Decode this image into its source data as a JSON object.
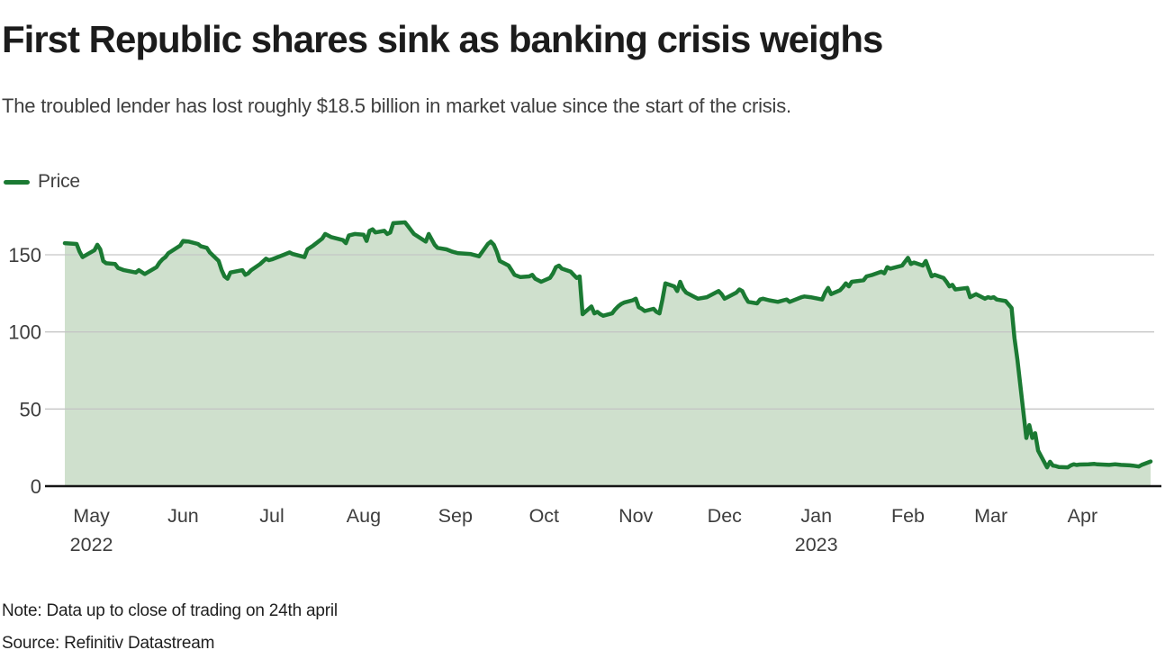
{
  "header": {
    "title": "First Republic shares sink as banking crisis weighs",
    "subtitle": "The troubled lender has lost roughly $18.5 billion in market value since the start of the crisis."
  },
  "legend": {
    "label": "Price"
  },
  "footer": {
    "note": "Note: Data up to close of trading on 24th april",
    "source": "Source: Refinitiv Datastream"
  },
  "colors": {
    "line": "#1b7a33",
    "fill": "#cfe0cd",
    "grid": "#c4c4c4",
    "axis": "#151515",
    "tick_text": "#3d3d3d"
  },
  "chart_data": {
    "type": "area",
    "title": "First Republic Bank share price (USD)",
    "xlabel": "",
    "ylabel": "",
    "x_unit": "date",
    "x_range": [
      "2022-04-22",
      "2023-04-24"
    ],
    "ylim": [
      0,
      175
    ],
    "y_ticks": [
      0,
      50,
      100,
      150
    ],
    "grid": "horizontal",
    "legend_position": "top-left",
    "x_ticks": [
      {
        "label": "May",
        "x": "2022-05-01",
        "year": "2022"
      },
      {
        "label": "Jun",
        "x": "2022-06-01"
      },
      {
        "label": "Jul",
        "x": "2022-07-01"
      },
      {
        "label": "Aug",
        "x": "2022-08-01"
      },
      {
        "label": "Sep",
        "x": "2022-09-01"
      },
      {
        "label": "Oct",
        "x": "2022-10-01"
      },
      {
        "label": "Nov",
        "x": "2022-11-01"
      },
      {
        "label": "Dec",
        "x": "2022-12-01"
      },
      {
        "label": "Jan",
        "x": "2023-01-01",
        "year": "2023"
      },
      {
        "label": "Feb",
        "x": "2023-02-01"
      },
      {
        "label": "Mar",
        "x": "2023-03-01"
      },
      {
        "label": "Apr",
        "x": "2023-04-01"
      }
    ],
    "series": [
      {
        "name": "Price",
        "points": [
          [
            "2022-04-22",
            157.5
          ],
          [
            "2022-04-26",
            157
          ],
          [
            "2022-04-27",
            152
          ],
          [
            "2022-04-28",
            148.5
          ],
          [
            "2022-05-02",
            153
          ],
          [
            "2022-05-03",
            156.5
          ],
          [
            "2022-05-04",
            153.5
          ],
          [
            "2022-05-05",
            146
          ],
          [
            "2022-05-06",
            144.5
          ],
          [
            "2022-05-09",
            144
          ],
          [
            "2022-05-10",
            141.5
          ],
          [
            "2022-05-12",
            140
          ],
          [
            "2022-05-16",
            138.5
          ],
          [
            "2022-05-17",
            140
          ],
          [
            "2022-05-19",
            137.5
          ],
          [
            "2022-05-23",
            142
          ],
          [
            "2022-05-24",
            145
          ],
          [
            "2022-05-25",
            147
          ],
          [
            "2022-05-26",
            148.5
          ],
          [
            "2022-05-27",
            151
          ],
          [
            "2022-05-31",
            156
          ],
          [
            "2022-06-01",
            159
          ],
          [
            "2022-06-03",
            158.5
          ],
          [
            "2022-06-06",
            157
          ],
          [
            "2022-06-07",
            155.5
          ],
          [
            "2022-06-09",
            154.5
          ],
          [
            "2022-06-10",
            151.5
          ],
          [
            "2022-06-13",
            146
          ],
          [
            "2022-06-14",
            140
          ],
          [
            "2022-06-15",
            136
          ],
          [
            "2022-06-16",
            134.5
          ],
          [
            "2022-06-17",
            138.5
          ],
          [
            "2022-06-21",
            140
          ],
          [
            "2022-06-22",
            137
          ],
          [
            "2022-06-23",
            138
          ],
          [
            "2022-06-24",
            140
          ],
          [
            "2022-06-27",
            144
          ],
          [
            "2022-06-29",
            147.5
          ],
          [
            "2022-06-30",
            146.5
          ],
          [
            "2022-07-01",
            147
          ],
          [
            "2022-07-05",
            150
          ],
          [
            "2022-07-07",
            151.5
          ],
          [
            "2022-07-08",
            150.5
          ],
          [
            "2022-07-12",
            148.5
          ],
          [
            "2022-07-13",
            153.5
          ],
          [
            "2022-07-15",
            156
          ],
          [
            "2022-07-18",
            160.5
          ],
          [
            "2022-07-19",
            163.5
          ],
          [
            "2022-07-21",
            161.5
          ],
          [
            "2022-07-25",
            159.5
          ],
          [
            "2022-07-26",
            157.5
          ],
          [
            "2022-07-27",
            162.5
          ],
          [
            "2022-07-29",
            163.5
          ],
          [
            "2022-08-01",
            163
          ],
          [
            "2022-08-02",
            159
          ],
          [
            "2022-08-03",
            165.5
          ],
          [
            "2022-08-04",
            166.5
          ],
          [
            "2022-08-05",
            164.5
          ],
          [
            "2022-08-08",
            165.5
          ],
          [
            "2022-08-09",
            163.5
          ],
          [
            "2022-08-10",
            164.5
          ],
          [
            "2022-08-11",
            170.5
          ],
          [
            "2022-08-15",
            171
          ],
          [
            "2022-08-16",
            168.5
          ],
          [
            "2022-08-18",
            163.5
          ],
          [
            "2022-08-22",
            158.5
          ],
          [
            "2022-08-23",
            163.5
          ],
          [
            "2022-08-25",
            156.5
          ],
          [
            "2022-08-26",
            154.5
          ],
          [
            "2022-08-29",
            153.5
          ],
          [
            "2022-08-31",
            152
          ],
          [
            "2022-09-02",
            151
          ],
          [
            "2022-09-06",
            150.5
          ],
          [
            "2022-09-09",
            149
          ],
          [
            "2022-09-12",
            157
          ],
          [
            "2022-09-13",
            158.5
          ],
          [
            "2022-09-14",
            156.5
          ],
          [
            "2022-09-15",
            152
          ],
          [
            "2022-09-16",
            146
          ],
          [
            "2022-09-19",
            143
          ],
          [
            "2022-09-20",
            140
          ],
          [
            "2022-09-21",
            137
          ],
          [
            "2022-09-23",
            135.5
          ],
          [
            "2022-09-26",
            136
          ],
          [
            "2022-09-27",
            137
          ],
          [
            "2022-09-28",
            134.5
          ],
          [
            "2022-09-30",
            132.5
          ],
          [
            "2022-10-03",
            135
          ],
          [
            "2022-10-04",
            138
          ],
          [
            "2022-10-05",
            142
          ],
          [
            "2022-10-06",
            143
          ],
          [
            "2022-10-07",
            141
          ],
          [
            "2022-10-10",
            139
          ],
          [
            "2022-10-11",
            137
          ],
          [
            "2022-10-12",
            135
          ],
          [
            "2022-10-13",
            136
          ],
          [
            "2022-10-14",
            111.5
          ],
          [
            "2022-10-17",
            116.5
          ],
          [
            "2022-10-18",
            112
          ],
          [
            "2022-10-19",
            113
          ],
          [
            "2022-10-20",
            111.5
          ],
          [
            "2022-10-21",
            110.5
          ],
          [
            "2022-10-24",
            112
          ],
          [
            "2022-10-25",
            114.5
          ],
          [
            "2022-10-26",
            116.5
          ],
          [
            "2022-10-27",
            118
          ],
          [
            "2022-10-28",
            119
          ],
          [
            "2022-10-31",
            120.5
          ],
          [
            "2022-11-01",
            121.5
          ],
          [
            "2022-11-02",
            116
          ],
          [
            "2022-11-03",
            115
          ],
          [
            "2022-11-04",
            113.5
          ],
          [
            "2022-11-07",
            115
          ],
          [
            "2022-11-08",
            113
          ],
          [
            "2022-11-09",
            112
          ],
          [
            "2022-11-10",
            121
          ],
          [
            "2022-11-11",
            131.5
          ],
          [
            "2022-11-14",
            129.5
          ],
          [
            "2022-11-15",
            126.5
          ],
          [
            "2022-11-16",
            132.5
          ],
          [
            "2022-11-17",
            128
          ],
          [
            "2022-11-18",
            125.5
          ],
          [
            "2022-11-21",
            122.5
          ],
          [
            "2022-11-22",
            121.5
          ],
          [
            "2022-11-25",
            122.5
          ],
          [
            "2022-11-28",
            125.5
          ],
          [
            "2022-11-29",
            126.5
          ],
          [
            "2022-11-30",
            124.5
          ],
          [
            "2022-12-01",
            121.5
          ],
          [
            "2022-12-02",
            122.5
          ],
          [
            "2022-12-05",
            125.5
          ],
          [
            "2022-12-06",
            127.5
          ],
          [
            "2022-12-07",
            126.5
          ],
          [
            "2022-12-08",
            122.5
          ],
          [
            "2022-12-09",
            119.5
          ],
          [
            "2022-12-12",
            118.5
          ],
          [
            "2022-12-13",
            121
          ],
          [
            "2022-12-14",
            121.5
          ],
          [
            "2022-12-16",
            120.5
          ],
          [
            "2022-12-19",
            119.5
          ],
          [
            "2022-12-21",
            120.5
          ],
          [
            "2022-12-22",
            121
          ],
          [
            "2022-12-23",
            119.5
          ],
          [
            "2022-12-27",
            122.5
          ],
          [
            "2022-12-28",
            123
          ],
          [
            "2022-12-30",
            122.5
          ],
          [
            "2023-01-03",
            121
          ],
          [
            "2023-01-04",
            125.5
          ],
          [
            "2023-01-05",
            128.5
          ],
          [
            "2023-01-06",
            124.5
          ],
          [
            "2023-01-09",
            127
          ],
          [
            "2023-01-10",
            129
          ],
          [
            "2023-01-11",
            131.5
          ],
          [
            "2023-01-12",
            129.5
          ],
          [
            "2023-01-13",
            132.5
          ],
          [
            "2023-01-17",
            133.5
          ],
          [
            "2023-01-18",
            136
          ],
          [
            "2023-01-20",
            137
          ],
          [
            "2023-01-23",
            139
          ],
          [
            "2023-01-24",
            138
          ],
          [
            "2023-01-25",
            142
          ],
          [
            "2023-01-26",
            141
          ],
          [
            "2023-01-30",
            143
          ],
          [
            "2023-02-01",
            148
          ],
          [
            "2023-02-02",
            144
          ],
          [
            "2023-02-03",
            145
          ],
          [
            "2023-02-06",
            143
          ],
          [
            "2023-02-07",
            146
          ],
          [
            "2023-02-08",
            141
          ],
          [
            "2023-02-09",
            136
          ],
          [
            "2023-02-10",
            137
          ],
          [
            "2023-02-13",
            135
          ],
          [
            "2023-02-14",
            132.5
          ],
          [
            "2023-02-15",
            129.5
          ],
          [
            "2023-02-16",
            130.5
          ],
          [
            "2023-02-17",
            127.5
          ],
          [
            "2023-02-21",
            128.5
          ],
          [
            "2023-02-22",
            122.5
          ],
          [
            "2023-02-23",
            123.5
          ],
          [
            "2023-02-24",
            124.5
          ],
          [
            "2023-02-27",
            121.5
          ],
          [
            "2023-02-28",
            122.5
          ],
          [
            "2023-03-01",
            122
          ],
          [
            "2023-03-02",
            122.5
          ],
          [
            "2023-03-03",
            121
          ],
          [
            "2023-03-06",
            120
          ],
          [
            "2023-03-08",
            115.5
          ],
          [
            "2023-03-09",
            96
          ],
          [
            "2023-03-10",
            81.8
          ],
          [
            "2023-03-13",
            31.2
          ],
          [
            "2023-03-14",
            39.6
          ],
          [
            "2023-03-15",
            31.2
          ],
          [
            "2023-03-16",
            34.3
          ],
          [
            "2023-03-17",
            23
          ],
          [
            "2023-03-20",
            12.2
          ],
          [
            "2023-03-21",
            15.8
          ],
          [
            "2023-03-22",
            13.3
          ],
          [
            "2023-03-23",
            13
          ],
          [
            "2023-03-24",
            12.4
          ],
          [
            "2023-03-27",
            12.2
          ],
          [
            "2023-03-28",
            13.4
          ],
          [
            "2023-03-29",
            14.2
          ],
          [
            "2023-03-30",
            13.7
          ],
          [
            "2023-03-31",
            14
          ],
          [
            "2023-04-03",
            14.2
          ],
          [
            "2023-04-05",
            14.4
          ],
          [
            "2023-04-06",
            14.1
          ],
          [
            "2023-04-10",
            13.8
          ],
          [
            "2023-04-12",
            14.2
          ],
          [
            "2023-04-14",
            13.8
          ],
          [
            "2023-04-17",
            13.5
          ],
          [
            "2023-04-18",
            13.3
          ],
          [
            "2023-04-19",
            13
          ],
          [
            "2023-04-20",
            12.7
          ],
          [
            "2023-04-21",
            13.8
          ],
          [
            "2023-04-24",
            16
          ]
        ]
      }
    ]
  }
}
